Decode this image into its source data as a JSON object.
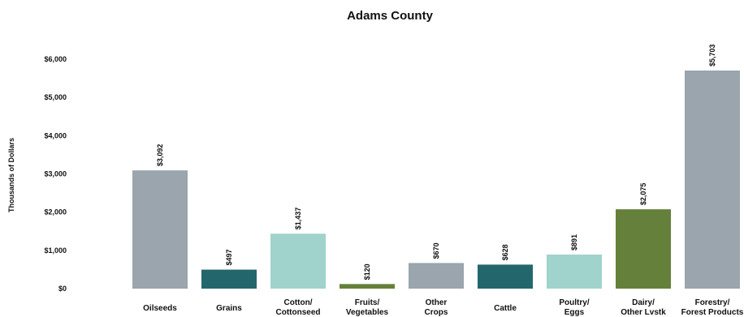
{
  "chart_data": {
    "type": "bar",
    "title": "Adams County",
    "xlabel": "",
    "ylabel": "Thousands of Dollars",
    "ylim": [
      0,
      6000
    ],
    "yticks": [
      0,
      1000,
      2000,
      3000,
      4000,
      5000,
      6000
    ],
    "ytick_labels": [
      "$0",
      "$1,000",
      "$2,000",
      "$3,000",
      "$4,000",
      "$5,000",
      "$6,000"
    ],
    "grid": false,
    "legend": "none",
    "categories": [
      [
        "Oilseeds"
      ],
      [
        "Grains"
      ],
      [
        "Cotton/",
        "Cottonseed"
      ],
      [
        "Fruits/",
        "Vegetables"
      ],
      [
        "Other",
        "Crops"
      ],
      [
        "Cattle"
      ],
      [
        "Poultry/",
        "Eggs"
      ],
      [
        "Dairy/",
        "Other Lvstk"
      ],
      [
        "Forestry/",
        "Forest Products"
      ]
    ],
    "values": [
      3092,
      497,
      1437,
      120,
      670,
      628,
      891,
      2075,
      5703
    ],
    "data_labels": [
      "$3,092",
      "$497",
      "$1,437",
      "$120",
      "$670",
      "$628",
      "$891",
      "$2,075",
      "$5,703"
    ],
    "colors": [
      "#9aa5ae",
      "#23676d",
      "#a0d3cb",
      "#65803a",
      "#9aa5ae",
      "#23676d",
      "#a0d3cb",
      "#65803a",
      "#9aa5ae"
    ]
  }
}
